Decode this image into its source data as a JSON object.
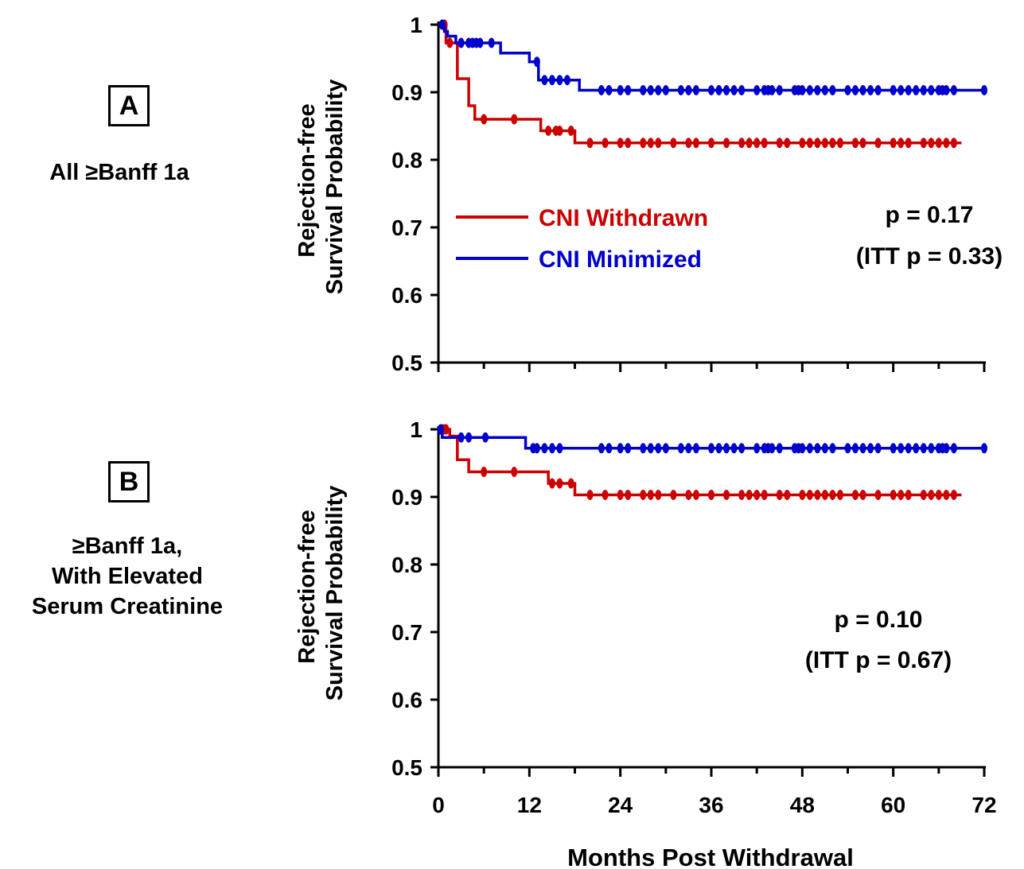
{
  "panels": [
    {
      "letter": "A",
      "description_lines": [
        "All ≥Banff 1a"
      ],
      "p_value": "p = 0.17",
      "itt_p_value": "(ITT p = 0.33)"
    },
    {
      "letter": "B",
      "description_lines": [
        "≥Banff 1a,",
        "With Elevated",
        "Serum Creatinine"
      ],
      "p_value": "p = 0.10",
      "itt_p_value": "(ITT p = 0.67)"
    }
  ],
  "legend": {
    "withdrawn": "CNI Withdrawn",
    "minimized": "CNI Minimized"
  },
  "colors": {
    "withdrawn": "#cc0000",
    "minimized": "#0000cc",
    "axis": "#000000"
  },
  "chart_data": [
    {
      "type": "line",
      "subtype": "kaplan-meier-step",
      "title": "",
      "xlabel": "Months Post Withdrawal",
      "ylabel": [
        "Rejection-free",
        "Survival Probability"
      ],
      "xlim": [
        0,
        72
      ],
      "ylim": [
        0.5,
        1.0
      ],
      "x_ticks": [
        "0",
        "12",
        "24",
        "36",
        "48",
        "60",
        "72"
      ],
      "y_ticks": [
        "0.5",
        "0.6",
        "0.7",
        "0.8",
        "0.9",
        "1"
      ],
      "legend_position": "left-middle",
      "series": [
        {
          "name": "CNI Withdrawn",
          "color_key": "withdrawn",
          "step_x": [
            0,
            1,
            2.5,
            4,
            4.8,
            13.5,
            18,
            69
          ],
          "step_y": [
            1.0,
            0.973,
            0.92,
            0.88,
            0.86,
            0.843,
            0.825,
            0.825
          ],
          "censored_x": [
            0.8,
            1.5,
            6,
            10,
            14.5,
            15.5,
            16,
            17.5,
            20,
            22,
            24,
            25,
            27,
            28,
            29,
            31,
            33,
            34,
            36,
            38,
            40,
            41,
            42,
            43,
            45,
            46,
            48,
            49,
            50,
            51,
            52,
            53,
            55,
            56,
            58,
            60,
            61,
            62,
            64,
            65,
            66,
            67,
            68
          ]
        },
        {
          "name": "CNI Minimized",
          "color_key": "minimized",
          "step_x": [
            0,
            0.8,
            1.2,
            2.3,
            8.2,
            12,
            13.2,
            18.6,
            72
          ],
          "step_y": [
            1.0,
            0.99,
            0.983,
            0.973,
            0.958,
            0.945,
            0.918,
            0.903,
            0.903
          ],
          "censored_x": [
            0.5,
            3,
            4,
            4.5,
            5,
            5.5,
            7,
            13,
            14,
            15,
            16,
            17,
            21.5,
            22.5,
            24,
            25,
            27,
            28,
            29,
            30,
            32,
            33,
            34,
            36,
            37,
            38,
            39,
            40,
            42,
            43,
            43.5,
            44,
            45,
            47,
            47.5,
            48,
            49,
            50,
            51,
            52,
            54,
            55,
            56,
            57,
            58,
            60,
            61,
            62,
            63,
            64,
            65,
            66,
            66.5,
            67,
            68,
            72
          ]
        }
      ]
    },
    {
      "type": "line",
      "subtype": "kaplan-meier-step",
      "title": "",
      "xlabel": "Months Post Withdrawal",
      "ylabel": [
        "Rejection-free",
        "Survival Probability"
      ],
      "xlim": [
        0,
        72
      ],
      "ylim": [
        0.5,
        1.0
      ],
      "x_ticks": [
        "0",
        "12",
        "24",
        "36",
        "48",
        "60",
        "72"
      ],
      "y_ticks": [
        "0.5",
        "0.6",
        "0.7",
        "0.8",
        "0.9",
        "1"
      ],
      "series": [
        {
          "name": "CNI Withdrawn",
          "color_key": "withdrawn",
          "step_x": [
            0,
            1.5,
            2.5,
            4,
            14.5,
            18,
            69
          ],
          "step_y": [
            1.0,
            0.99,
            0.955,
            0.937,
            0.92,
            0.903,
            0.903
          ],
          "censored_x": [
            0.5,
            0.8,
            1,
            6,
            10,
            15,
            16,
            17.5,
            20,
            22,
            24,
            25,
            27,
            28,
            29,
            31,
            33,
            34,
            36,
            38,
            40,
            41,
            42,
            43,
            45,
            46,
            48,
            49,
            50,
            51,
            52,
            53,
            55,
            56,
            58,
            60,
            61,
            62,
            64,
            65,
            66,
            67,
            68
          ]
        },
        {
          "name": "CNI Minimized",
          "color_key": "minimized",
          "step_x": [
            0,
            0.5,
            11.5,
            72
          ],
          "step_y": [
            1.0,
            0.988,
            0.972,
            0.972
          ],
          "censored_x": [
            0.3,
            3,
            4,
            6.2,
            12.5,
            13,
            14,
            15,
            16,
            21.5,
            22.5,
            24,
            25,
            27,
            28,
            29,
            30,
            32,
            33,
            34,
            36,
            37,
            38,
            39,
            40,
            42,
            43,
            43.5,
            44,
            45,
            47,
            47.5,
            48,
            49,
            50,
            51,
            52,
            54,
            55,
            56,
            57,
            58,
            60,
            61,
            62,
            63,
            64,
            65,
            66,
            66.5,
            67,
            68,
            72
          ]
        }
      ]
    }
  ]
}
